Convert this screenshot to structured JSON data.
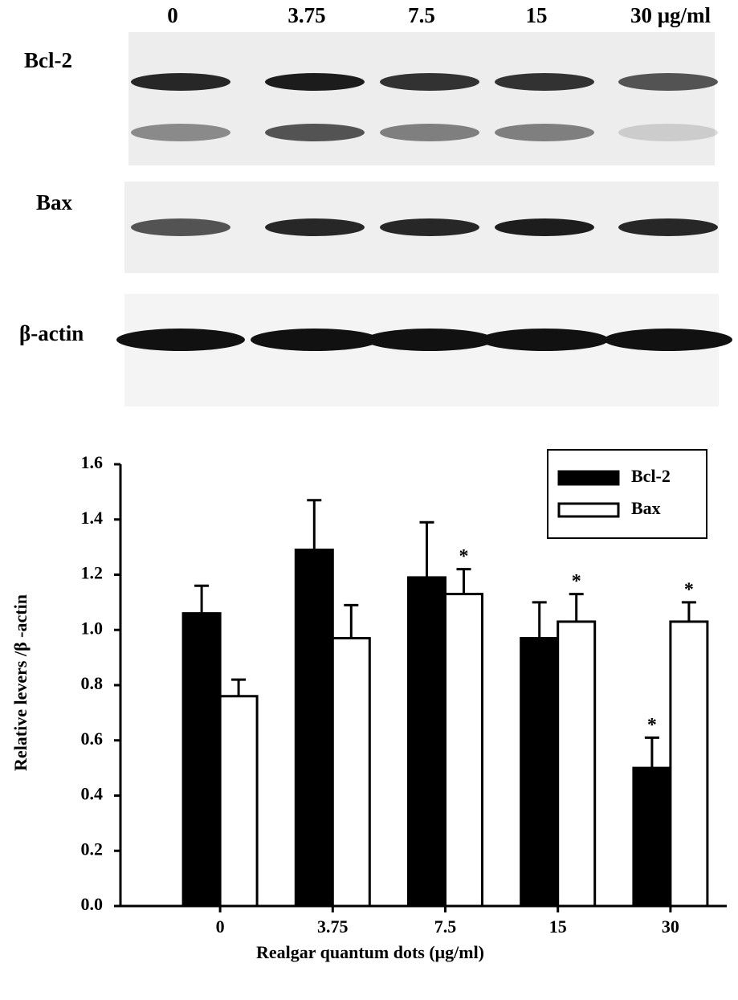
{
  "blot": {
    "lanes": [
      "0",
      "3.75",
      "7.5",
      "15",
      "30 μg/ml"
    ],
    "rows": [
      "Bcl-2",
      "Bax",
      "β-actin"
    ]
  },
  "chart_data": {
    "type": "bar",
    "y_label": "Relative levers /β -actin",
    "x_label": "Realgar quantum dots (μg/ml)",
    "categories": [
      "0",
      "3.75",
      "7.5",
      "15",
      "30"
    ],
    "series": [
      {
        "name": "Bcl-2",
        "color": "#000000",
        "values": [
          1.06,
          1.29,
          1.19,
          0.97,
          0.5
        ],
        "errors": [
          0.1,
          0.18,
          0.2,
          0.13,
          0.11
        ],
        "annotations": [
          null,
          null,
          null,
          null,
          "*"
        ]
      },
      {
        "name": "Bax",
        "color": "#ffffff",
        "values": [
          0.76,
          0.97,
          1.13,
          1.03,
          1.03
        ],
        "errors": [
          0.06,
          0.12,
          0.09,
          0.1,
          0.07
        ],
        "annotations": [
          null,
          null,
          "*",
          "*",
          "*"
        ]
      }
    ],
    "ylim": [
      0,
      1.6
    ],
    "yticks": [
      {
        "value": 0,
        "label": "0.0"
      },
      0.2,
      0.4,
      0.6,
      0.8,
      {
        "value": 1,
        "label": "1.0"
      },
      1.2,
      1.4,
      1.6
    ],
    "legend": "top-right"
  }
}
